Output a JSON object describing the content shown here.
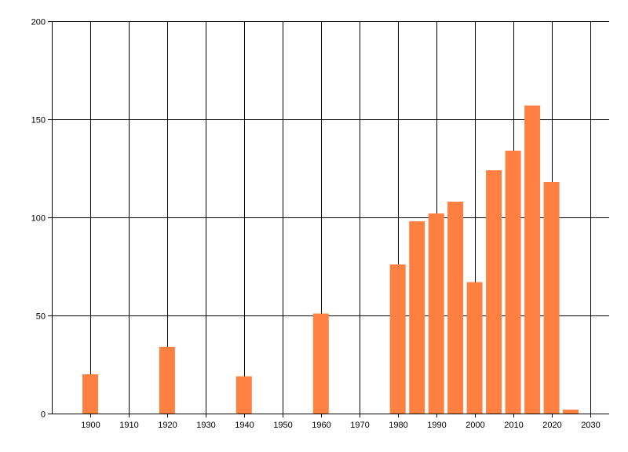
{
  "chart_data": {
    "type": "bar",
    "title": "",
    "xlabel": "",
    "ylabel": "",
    "x": [
      1900,
      1920,
      1940,
      1960,
      1980,
      1985,
      1990,
      1995,
      2000,
      2005,
      2010,
      2015,
      2020,
      2025
    ],
    "values": [
      20,
      34,
      19,
      51,
      76,
      98,
      102,
      108,
      67,
      124,
      134,
      157,
      118,
      2
    ],
    "xlim": [
      1890,
      2035
    ],
    "ylim": [
      0,
      200
    ],
    "x_ticks": [
      1900,
      1910,
      1920,
      1930,
      1940,
      1950,
      1960,
      1970,
      1980,
      1990,
      2000,
      2010,
      2020,
      2030
    ],
    "y_ticks": [
      0,
      50,
      100,
      150,
      200
    ],
    "grid": true,
    "bar_color": "#ff8040",
    "grid_color": "#000000"
  }
}
